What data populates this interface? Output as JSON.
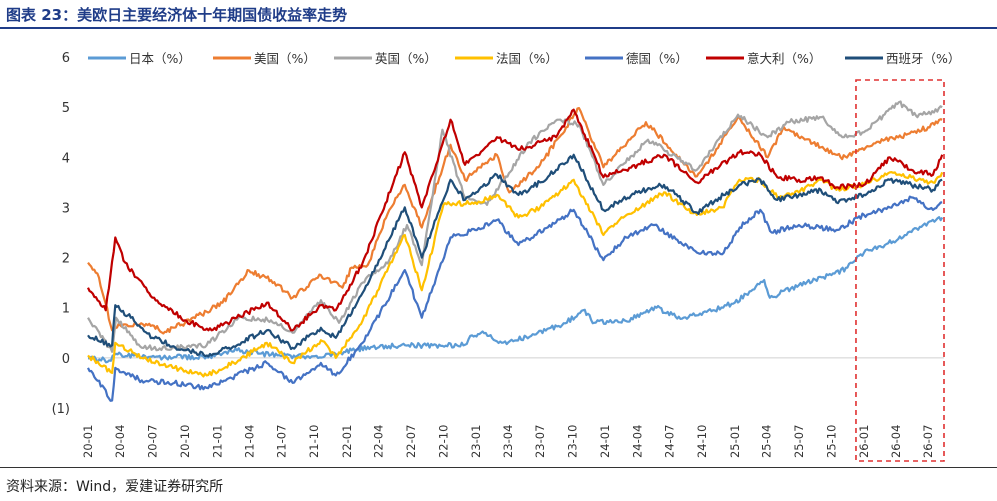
{
  "header": {
    "title": "图表 23：美欧日主要经济体十年期国债收益率走势"
  },
  "footer": {
    "source": "资料来源：Wind，爱建证券研究所"
  },
  "colors": {
    "title": "#1f3c88",
    "highlight_box": "#e03030"
  },
  "chart_data": {
    "type": "line",
    "title": "美欧日主要经济体十年期国债收益率走势",
    "xlabel": "",
    "ylabel": "",
    "ylim": [
      -1,
      6
    ],
    "ytick_labels": [
      "(1)",
      "0",
      "1",
      "2",
      "3",
      "4",
      "5",
      "6"
    ],
    "xtick_labels": [
      "20-01",
      "20-04",
      "20-07",
      "20-10",
      "21-01",
      "21-04",
      "21-07",
      "21-10",
      "22-01",
      "22-04",
      "22-07",
      "22-10",
      "23-01",
      "23-04",
      "23-07",
      "23-10",
      "24-01",
      "24-04",
      "24-07",
      "24-10",
      "25-01",
      "25-04",
      "25-07",
      "25-10",
      "26-01",
      "26-04",
      "26-07"
    ],
    "x_range": [
      "2020-01-01",
      "2026-08-15"
    ],
    "grid": false,
    "legend_position": "top",
    "highlight_range": [
      "2025-12-15",
      "2026-08-15"
    ],
    "series": [
      {
        "name": "日本（%）",
        "color": "#5b9bd5",
        "points": [
          [
            "2020-01-01",
            -0.01
          ],
          [
            "2020-03-01",
            -0.05
          ],
          [
            "2020-03-20",
            0.08
          ],
          [
            "2020-06-01",
            0.01
          ],
          [
            "2020-09-01",
            0.02
          ],
          [
            "2020-12-01",
            0.02
          ],
          [
            "2021-02-25",
            0.15
          ],
          [
            "2021-06-01",
            0.06
          ],
          [
            "2021-09-01",
            0.03
          ],
          [
            "2021-12-01",
            0.07
          ],
          [
            "2022-01-15",
            0.15
          ],
          [
            "2022-03-15",
            0.22
          ],
          [
            "2022-06-01",
            0.24
          ],
          [
            "2022-09-01",
            0.25
          ],
          [
            "2022-12-01",
            0.26
          ],
          [
            "2022-12-21",
            0.45
          ],
          [
            "2023-01-15",
            0.5
          ],
          [
            "2023-03-15",
            0.3
          ],
          [
            "2023-06-01",
            0.42
          ],
          [
            "2023-07-31",
            0.6
          ],
          [
            "2023-09-01",
            0.65
          ],
          [
            "2023-10-31",
            0.95
          ],
          [
            "2023-12-01",
            0.7
          ],
          [
            "2024-03-01",
            0.73
          ],
          [
            "2024-05-25",
            1.0
          ],
          [
            "2024-08-05",
            0.78
          ],
          [
            "2024-11-01",
            0.95
          ],
          [
            "2025-01-01",
            1.1
          ],
          [
            "2025-03-25",
            1.55
          ],
          [
            "2025-04-10",
            1.2
          ],
          [
            "2025-07-01",
            1.45
          ],
          [
            "2025-10-01",
            1.65
          ],
          [
            "2025-11-15",
            1.8
          ],
          [
            "2026-01-01",
            2.1
          ],
          [
            "2026-03-01",
            2.25
          ],
          [
            "2026-05-01",
            2.45
          ],
          [
            "2026-07-01",
            2.7
          ],
          [
            "2026-08-10",
            2.8
          ]
        ]
      },
      {
        "name": "美国（%）",
        "color": "#ed7d31",
        "points": [
          [
            "2020-01-01",
            1.9
          ],
          [
            "2020-02-01",
            1.6
          ],
          [
            "2020-03-09",
            0.55
          ],
          [
            "2020-04-01",
            0.65
          ],
          [
            "2020-07-01",
            0.65
          ],
          [
            "2020-08-05",
            0.52
          ],
          [
            "2020-10-01",
            0.7
          ],
          [
            "2020-12-01",
            0.92
          ],
          [
            "2021-01-15",
            1.1
          ],
          [
            "2021-03-31",
            1.74
          ],
          [
            "2021-06-01",
            1.55
          ],
          [
            "2021-08-01",
            1.2
          ],
          [
            "2021-10-20",
            1.65
          ],
          [
            "2021-12-20",
            1.4
          ],
          [
            "2022-01-15",
            1.8
          ],
          [
            "2022-03-01",
            1.85
          ],
          [
            "2022-05-01",
            2.95
          ],
          [
            "2022-06-14",
            3.45
          ],
          [
            "2022-08-01",
            2.6
          ],
          [
            "2022-10-21",
            4.25
          ],
          [
            "2022-12-01",
            3.55
          ],
          [
            "2023-03-01",
            4.05
          ],
          [
            "2023-04-05",
            3.3
          ],
          [
            "2023-07-01",
            3.85
          ],
          [
            "2023-10-19",
            4.98
          ],
          [
            "2023-12-27",
            3.8
          ],
          [
            "2024-04-25",
            4.7
          ],
          [
            "2024-09-16",
            3.62
          ],
          [
            "2025-01-13",
            4.8
          ],
          [
            "2025-04-04",
            4.0
          ],
          [
            "2025-05-20",
            4.6
          ],
          [
            "2025-09-01",
            4.2
          ],
          [
            "2025-10-27",
            4.0
          ],
          [
            "2026-01-01",
            4.15
          ],
          [
            "2026-03-01",
            4.35
          ],
          [
            "2026-05-01",
            4.45
          ],
          [
            "2026-07-01",
            4.6
          ],
          [
            "2026-08-10",
            4.75
          ]
        ]
      },
      {
        "name": "英国（%）",
        "color": "#a5a5a5",
        "points": [
          [
            "2020-01-01",
            0.8
          ],
          [
            "2020-03-09",
            0.12
          ],
          [
            "2020-03-20",
            0.8
          ],
          [
            "2020-06-01",
            0.2
          ],
          [
            "2020-09-01",
            0.2
          ],
          [
            "2020-12-01",
            0.25
          ],
          [
            "2021-03-01",
            0.8
          ],
          [
            "2021-06-01",
            0.75
          ],
          [
            "2021-08-01",
            0.5
          ],
          [
            "2021-10-20",
            1.15
          ],
          [
            "2021-12-10",
            0.7
          ],
          [
            "2022-02-15",
            1.5
          ],
          [
            "2022-05-01",
            1.95
          ],
          [
            "2022-06-20",
            2.65
          ],
          [
            "2022-08-01",
            1.85
          ],
          [
            "2022-09-28",
            4.55
          ],
          [
            "2022-11-30",
            3.2
          ],
          [
            "2023-02-01",
            3.05
          ],
          [
            "2023-06-01",
            4.3
          ],
          [
            "2023-08-18",
            4.75
          ],
          [
            "2023-10-20",
            4.65
          ],
          [
            "2023-12-27",
            3.45
          ],
          [
            "2024-05-01",
            4.35
          ],
          [
            "2024-09-16",
            3.75
          ],
          [
            "2025-01-10",
            4.85
          ],
          [
            "2025-04-04",
            4.4
          ],
          [
            "2025-06-01",
            4.7
          ],
          [
            "2025-09-03",
            4.8
          ],
          [
            "2025-11-01",
            4.4
          ],
          [
            "2026-01-01",
            4.5
          ],
          [
            "2026-04-10",
            5.1
          ],
          [
            "2026-06-01",
            4.8
          ],
          [
            "2026-08-10",
            5.0
          ]
        ]
      },
      {
        "name": "法国（%）",
        "color": "#ffc000",
        "points": [
          [
            "2020-01-01",
            0.05
          ],
          [
            "2020-03-09",
            -0.3
          ],
          [
            "2020-03-18",
            0.3
          ],
          [
            "2020-06-01",
            0.0
          ],
          [
            "2020-09-01",
            -0.2
          ],
          [
            "2020-12-01",
            -0.35
          ],
          [
            "2021-03-01",
            -0.05
          ],
          [
            "2021-05-20",
            0.3
          ],
          [
            "2021-08-01",
            -0.1
          ],
          [
            "2021-10-20",
            0.35
          ],
          [
            "2021-12-01",
            0.0
          ],
          [
            "2022-02-15",
            0.75
          ],
          [
            "2022-06-14",
            2.45
          ],
          [
            "2022-08-01",
            1.35
          ],
          [
            "2022-10-01",
            3.05
          ],
          [
            "2022-12-30",
            3.1
          ],
          [
            "2023-03-01",
            3.25
          ],
          [
            "2023-05-01",
            2.8
          ],
          [
            "2023-07-01",
            3.0
          ],
          [
            "2023-10-04",
            3.55
          ],
          [
            "2023-12-27",
            2.45
          ],
          [
            "2024-03-01",
            2.85
          ],
          [
            "2024-06-15",
            3.3
          ],
          [
            "2024-09-16",
            2.85
          ],
          [
            "2024-11-27",
            3.0
          ],
          [
            "2025-01-14",
            3.55
          ],
          [
            "2025-03-14",
            3.55
          ],
          [
            "2025-05-01",
            3.2
          ],
          [
            "2025-07-01",
            3.3
          ],
          [
            "2025-09-01",
            3.55
          ],
          [
            "2025-10-15",
            3.35
          ],
          [
            "2026-01-01",
            3.45
          ],
          [
            "2026-03-15",
            3.7
          ],
          [
            "2026-05-15",
            3.6
          ],
          [
            "2026-07-15",
            3.5
          ],
          [
            "2026-08-10",
            3.7
          ]
        ]
      },
      {
        "name": "德国（%）",
        "color": "#4472c4",
        "points": [
          [
            "2020-01-01",
            -0.2
          ],
          [
            "2020-03-09",
            -0.85
          ],
          [
            "2020-03-18",
            -0.2
          ],
          [
            "2020-06-01",
            -0.45
          ],
          [
            "2020-09-01",
            -0.5
          ],
          [
            "2020-12-01",
            -0.6
          ],
          [
            "2021-05-20",
            -0.1
          ],
          [
            "2021-08-01",
            -0.5
          ],
          [
            "2021-10-20",
            -0.1
          ],
          [
            "2021-12-01",
            -0.35
          ],
          [
            "2022-02-15",
            0.3
          ],
          [
            "2022-06-14",
            1.75
          ],
          [
            "2022-08-01",
            0.8
          ],
          [
            "2022-10-21",
            2.4
          ],
          [
            "2022-12-30",
            2.55
          ],
          [
            "2023-03-01",
            2.75
          ],
          [
            "2023-05-01",
            2.25
          ],
          [
            "2023-08-15",
            2.7
          ],
          [
            "2023-10-04",
            2.95
          ],
          [
            "2023-12-27",
            1.95
          ],
          [
            "2024-03-01",
            2.4
          ],
          [
            "2024-05-15",
            2.65
          ],
          [
            "2024-09-16",
            2.1
          ],
          [
            "2024-12-01",
            2.1
          ],
          [
            "2025-01-15",
            2.6
          ],
          [
            "2025-03-14",
            2.95
          ],
          [
            "2025-04-15",
            2.5
          ],
          [
            "2025-07-01",
            2.65
          ],
          [
            "2025-10-15",
            2.55
          ],
          [
            "2026-01-01",
            2.85
          ],
          [
            "2026-03-15",
            3.0
          ],
          [
            "2026-05-15",
            3.2
          ],
          [
            "2026-07-15",
            2.95
          ],
          [
            "2026-08-10",
            3.1
          ]
        ]
      },
      {
        "name": "意大利（%）",
        "color": "#c00000",
        "points": [
          [
            "2020-01-01",
            1.4
          ],
          [
            "2020-02-20",
            0.95
          ],
          [
            "2020-03-18",
            2.4
          ],
          [
            "2020-04-15",
            1.9
          ],
          [
            "2020-07-01",
            1.2
          ],
          [
            "2020-10-01",
            0.75
          ],
          [
            "2020-12-15",
            0.55
          ],
          [
            "2021-05-20",
            1.1
          ],
          [
            "2021-08-01",
            0.55
          ],
          [
            "2021-10-20",
            1.05
          ],
          [
            "2021-12-01",
            0.95
          ],
          [
            "2022-02-15",
            1.9
          ],
          [
            "2022-06-14",
            4.1
          ],
          [
            "2022-08-01",
            3.0
          ],
          [
            "2022-10-21",
            4.75
          ],
          [
            "2022-12-01",
            3.85
          ],
          [
            "2023-03-01",
            4.4
          ],
          [
            "2023-05-01",
            4.15
          ],
          [
            "2023-08-15",
            4.4
          ],
          [
            "2023-10-04",
            4.95
          ],
          [
            "2023-12-27",
            3.6
          ],
          [
            "2024-04-01",
            3.85
          ],
          [
            "2024-06-15",
            4.05
          ],
          [
            "2024-09-16",
            3.5
          ],
          [
            "2025-01-14",
            4.1
          ],
          [
            "2025-03-14",
            4.05
          ],
          [
            "2025-05-01",
            3.6
          ],
          [
            "2025-07-01",
            3.55
          ],
          [
            "2025-09-01",
            3.6
          ],
          [
            "2025-10-15",
            3.4
          ],
          [
            "2026-01-01",
            3.45
          ],
          [
            "2026-03-15",
            4.0
          ],
          [
            "2026-05-15",
            3.75
          ],
          [
            "2026-07-15",
            3.65
          ],
          [
            "2026-08-10",
            4.05
          ]
        ]
      },
      {
        "name": "西班牙（%）",
        "color": "#1f4e79",
        "points": [
          [
            "2020-01-01",
            0.45
          ],
          [
            "2020-03-09",
            0.25
          ],
          [
            "2020-03-18",
            1.05
          ],
          [
            "2020-05-01",
            0.8
          ],
          [
            "2020-07-01",
            0.4
          ],
          [
            "2020-10-01",
            0.15
          ],
          [
            "2020-12-15",
            0.05
          ],
          [
            "2021-05-20",
            0.55
          ],
          [
            "2021-08-01",
            0.2
          ],
          [
            "2021-10-20",
            0.6
          ],
          [
            "2021-12-01",
            0.4
          ],
          [
            "2022-02-15",
            1.3
          ],
          [
            "2022-06-14",
            3.0
          ],
          [
            "2022-08-01",
            2.0
          ],
          [
            "2022-10-21",
            3.55
          ],
          [
            "2022-12-01",
            3.15
          ],
          [
            "2023-03-01",
            3.65
          ],
          [
            "2023-05-01",
            3.25
          ],
          [
            "2023-07-01",
            3.5
          ],
          [
            "2023-10-04",
            4.05
          ],
          [
            "2023-12-27",
            2.95
          ],
          [
            "2024-04-01",
            3.3
          ],
          [
            "2024-06-15",
            3.45
          ],
          [
            "2024-09-16",
            2.9
          ],
          [
            "2025-01-14",
            3.45
          ],
          [
            "2025-03-14",
            3.55
          ],
          [
            "2025-05-01",
            3.15
          ],
          [
            "2025-07-01",
            3.25
          ],
          [
            "2025-09-01",
            3.35
          ],
          [
            "2025-10-15",
            3.1
          ],
          [
            "2026-01-01",
            3.25
          ],
          [
            "2026-03-15",
            3.55
          ],
          [
            "2026-05-15",
            3.45
          ],
          [
            "2026-07-15",
            3.35
          ],
          [
            "2026-08-10",
            3.55
          ]
        ]
      }
    ]
  }
}
